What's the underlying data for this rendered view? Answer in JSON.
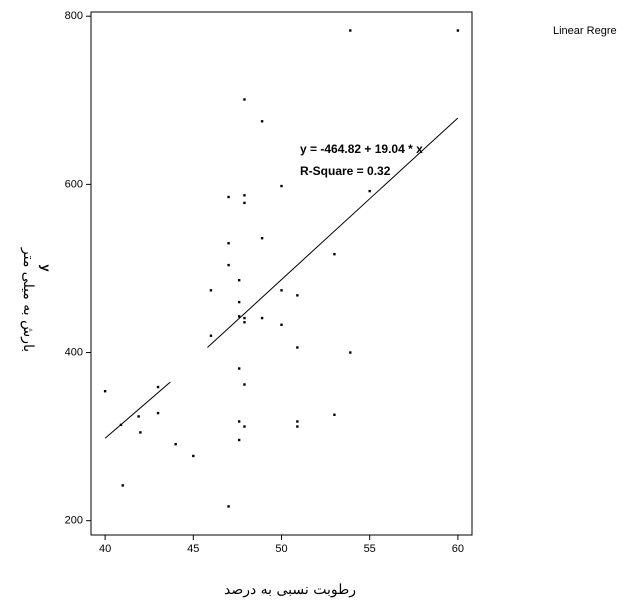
{
  "chart_data": {
    "type": "scatter",
    "x_label": "رطوبت نسبی به درصد",
    "y_label": "بارش به میلی متر",
    "y_symbol": "y",
    "legend_text": "Linear Regre",
    "annotations": [
      "y = -464.82 + 19.04 * x",
      "R-Square = 0.32"
    ],
    "xlim": [
      39.2,
      60.8
    ],
    "ylim": [
      183,
      805
    ],
    "xticks": [
      40,
      45,
      50,
      55,
      60
    ],
    "yticks": [
      200,
      400,
      600,
      800
    ],
    "color": "#000000",
    "x": [
      40,
      40.9,
      41,
      41.9,
      42,
      43,
      43,
      44,
      45,
      46,
      46,
      47,
      47,
      47,
      47,
      47.6,
      47.6,
      47.6,
      47.6,
      47.6,
      47.6,
      47.9,
      47.9,
      47.9,
      47.9,
      47.9,
      47.9,
      47.9,
      48.9,
      48.9,
      48.9,
      50,
      50,
      50,
      50.9,
      50.9,
      50.9,
      50.9,
      53,
      53,
      53.9,
      53.9,
      55,
      60
    ],
    "y": [
      354,
      314,
      242,
      324,
      305,
      328,
      359,
      291,
      277,
      474,
      420,
      585,
      530,
      504,
      217,
      486,
      460,
      443,
      381,
      318,
      296,
      701,
      587,
      578,
      441,
      436,
      362,
      312,
      675,
      536,
      441,
      598,
      474,
      433,
      468,
      406,
      318,
      312,
      517,
      326,
      783,
      400,
      592,
      783
    ],
    "lines": [
      {
        "x": [
          40,
          43.7
        ],
        "y": [
          298,
          365
        ]
      },
      {
        "x": [
          45.8,
          60
        ],
        "y": [
          406,
          679
        ]
      }
    ]
  }
}
